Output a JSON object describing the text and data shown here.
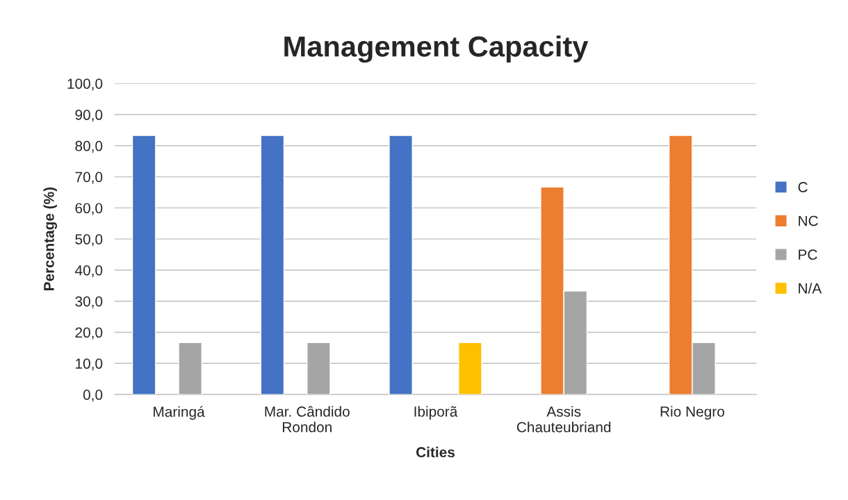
{
  "chart_data": {
    "type": "bar",
    "title": "Management Capacity",
    "xlabel": "Cities",
    "ylabel": "Percentage (%)",
    "categories": [
      "Maringá",
      "Mar. Cândido\nRondon",
      "Ibiporã",
      "Assis\nChauteubriand",
      "Rio Negro"
    ],
    "series": [
      {
        "name": "C",
        "color": "#4472c4",
        "values": [
          83.3,
          83.3,
          83.3,
          null,
          null
        ]
      },
      {
        "name": "NC",
        "color": "#ed7d31",
        "values": [
          null,
          null,
          null,
          66.7,
          83.3
        ]
      },
      {
        "name": "PC",
        "color": "#a5a5a5",
        "values": [
          16.7,
          16.7,
          null,
          33.3,
          16.7
        ]
      },
      {
        "name": "N/A",
        "color": "#ffc000",
        "values": [
          null,
          null,
          16.7,
          null,
          null
        ]
      }
    ],
    "ylim": [
      0,
      100
    ],
    "yticks": [
      {
        "value": 0,
        "label": "0,0"
      },
      {
        "value": 10,
        "label": "10,0"
      },
      {
        "value": 20,
        "label": "20,0"
      },
      {
        "value": 30,
        "label": "30,0"
      },
      {
        "value": 40,
        "label": "40,0"
      },
      {
        "value": 50,
        "label": "50,0"
      },
      {
        "value": 60,
        "label": "60,0"
      },
      {
        "value": 70,
        "label": "70,0"
      },
      {
        "value": 80,
        "label": "80,0"
      },
      {
        "value": 90,
        "label": "90,0"
      },
      {
        "value": 100,
        "label": "100,0"
      }
    ],
    "grid": "y",
    "legend": "right"
  }
}
